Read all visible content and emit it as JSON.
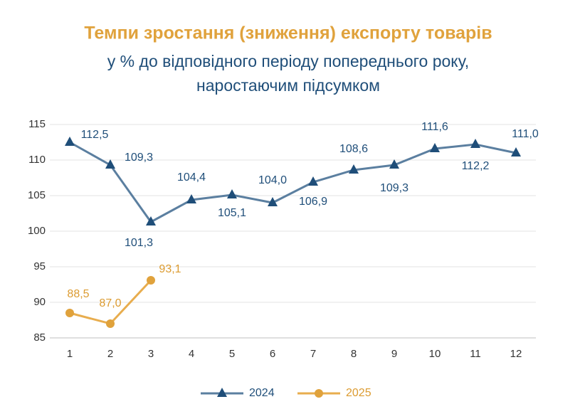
{
  "chart_data": {
    "type": "line",
    "title": "Темпи зростання (зниження) експорту товарів",
    "subtitle": [
      "у % до відповідного періоду попереднього року,",
      "наростаючим підсумком"
    ],
    "categories": [
      "1",
      "2",
      "3",
      "4",
      "5",
      "6",
      "7",
      "8",
      "9",
      "10",
      "11",
      "12"
    ],
    "series": [
      {
        "name": "2024",
        "color": "#5b7fa0",
        "marker_color": "#1f4e79",
        "label_color": "#1f4e79",
        "marker": "triangle",
        "values": [
          112.5,
          109.3,
          101.3,
          104.4,
          105.1,
          104.0,
          106.9,
          108.6,
          109.3,
          111.6,
          112.2,
          111.0
        ],
        "value_labels": [
          "112,5",
          "109,3",
          "101,3",
          "104,4",
          "105,1",
          "104,0",
          "106,9",
          "108,6",
          "109,3",
          "111,6",
          "112,2",
          "111,0"
        ]
      },
      {
        "name": "2025",
        "color": "#e8ad4e",
        "marker_color": "#e0a23c",
        "label_color": "#dc9b30",
        "marker": "circle",
        "values": [
          88.5,
          87.0,
          93.1,
          null,
          null,
          null,
          null,
          null,
          null,
          null,
          null,
          null
        ],
        "value_labels": [
          "88,5",
          "87,0",
          "93,1",
          null,
          null,
          null,
          null,
          null,
          null,
          null,
          null,
          null
        ]
      }
    ],
    "ylim": [
      85,
      115
    ],
    "yticks": [
      85,
      90,
      95,
      100,
      105,
      110,
      115
    ],
    "grid": true,
    "legend": "bottom"
  }
}
